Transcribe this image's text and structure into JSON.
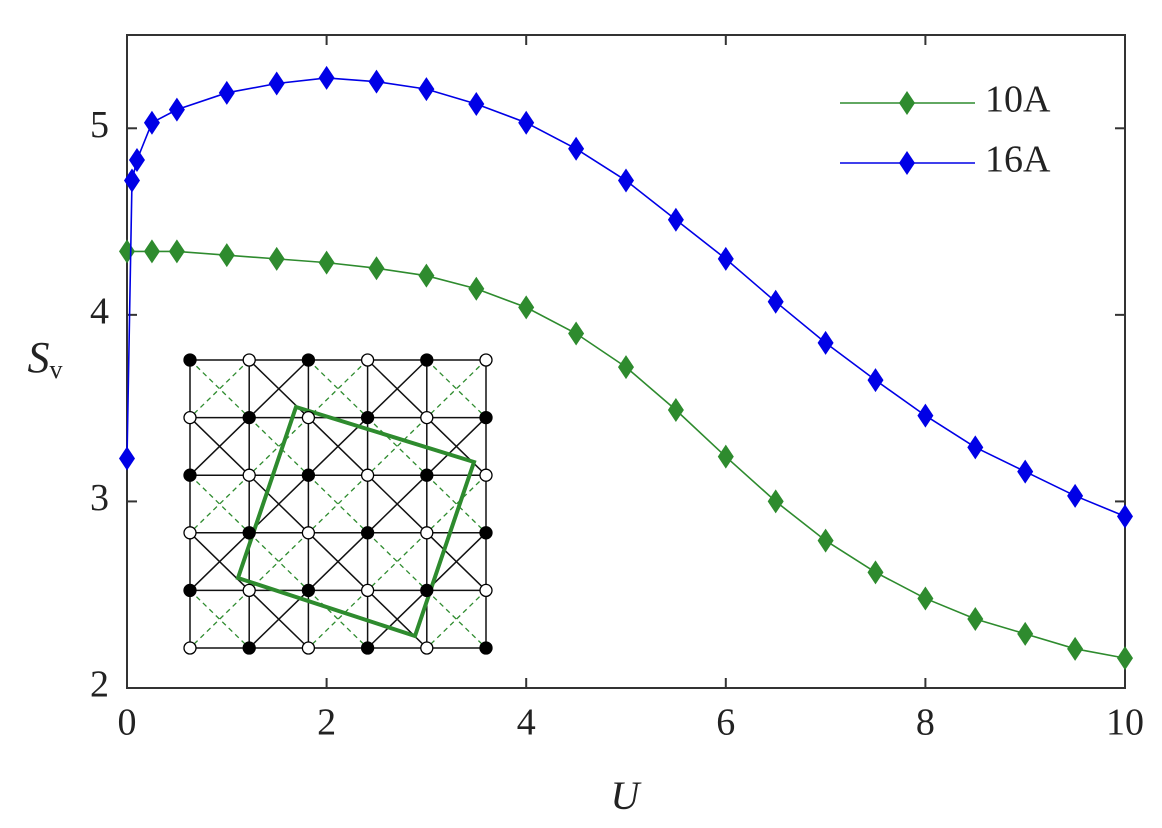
{
  "chart_data": {
    "type": "line",
    "xlabel": "U",
    "ylabel": {
      "text": "S",
      "sub": "v"
    },
    "xlim": [
      0,
      10
    ],
    "xticks": [
      0,
      2,
      4,
      6,
      8,
      10
    ],
    "ylim": [
      2,
      5.5
    ],
    "yticks": [
      2,
      3,
      4,
      5
    ],
    "legend": "upper right",
    "series": [
      {
        "name": "10A",
        "color": "#2e8b2e",
        "x": [
          0,
          0.25,
          0.5,
          1,
          1.5,
          2,
          2.5,
          3,
          3.5,
          4,
          4.5,
          5,
          5.5,
          6,
          6.5,
          7,
          7.5,
          8,
          8.5,
          9,
          9.5,
          10
        ],
        "values": [
          4.34,
          4.34,
          4.34,
          4.32,
          4.3,
          4.28,
          4.25,
          4.21,
          4.14,
          4.04,
          3.9,
          3.72,
          3.49,
          3.24,
          3.0,
          2.79,
          2.62,
          2.48,
          2.37,
          2.29,
          2.21,
          2.16
        ]
      },
      {
        "name": "16A",
        "color": "#0000e6",
        "x": [
          0,
          0.05,
          0.1,
          0.25,
          0.5,
          1,
          1.5,
          2,
          2.5,
          3,
          3.5,
          4,
          4.5,
          5,
          5.5,
          6,
          6.5,
          7,
          7.5,
          8,
          8.5,
          9,
          9.5,
          10
        ],
        "values": [
          3.23,
          4.72,
          4.83,
          5.03,
          5.1,
          5.19,
          5.24,
          5.27,
          5.25,
          5.21,
          5.13,
          5.03,
          4.89,
          4.72,
          4.51,
          4.3,
          4.07,
          3.85,
          3.65,
          3.46,
          3.29,
          3.16,
          3.03,
          2.92
        ]
      }
    ]
  }
}
